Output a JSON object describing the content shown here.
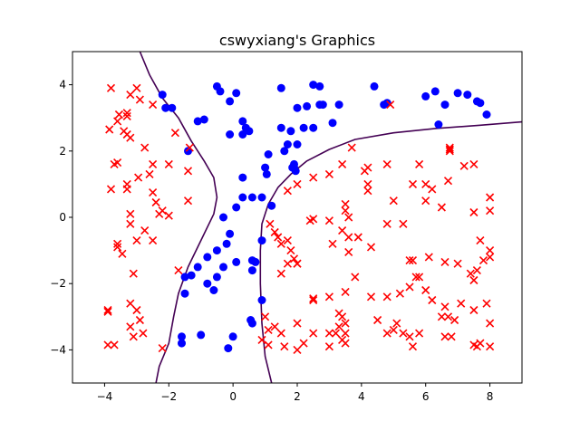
{
  "chart_data": {
    "type": "scatter",
    "title": "cswyxiang's Graphics",
    "xlabel": "",
    "ylabel": "",
    "xlim": [
      -5,
      9
    ],
    "ylim": [
      -5,
      5
    ],
    "xticks": [
      -4,
      -2,
      0,
      2,
      4,
      6,
      8
    ],
    "yticks": [
      -4,
      -2,
      0,
      2,
      4
    ],
    "xtick_labels": [
      "−4",
      "−2",
      "0",
      "2",
      "4",
      "6",
      "8"
    ],
    "ytick_labels": [
      "−4",
      "−2",
      "0",
      "2",
      "4"
    ],
    "grid": false,
    "legend": "none",
    "colors": {
      "positive": "#0000ff",
      "negative": "#ff0000",
      "boundary": "#440154"
    },
    "series": [
      {
        "marker": "circle",
        "color": "#0000ff",
        "points": [
          [
            -2.2,
            3.7
          ],
          [
            -2.1,
            3.3
          ],
          [
            -1.9,
            3.3
          ],
          [
            -1.1,
            2.9
          ],
          [
            -0.9,
            2.95
          ],
          [
            -0.5,
            3.95
          ],
          [
            -0.4,
            3.8
          ],
          [
            -0.1,
            3.5
          ],
          [
            0.1,
            3.75
          ],
          [
            -0.1,
            2.5
          ],
          [
            0.3,
            2.9
          ],
          [
            0.4,
            2.7
          ],
          [
            0.5,
            2.6
          ],
          [
            0.3,
            2.5
          ],
          [
            1.1,
            1.9
          ],
          [
            1.0,
            1.5
          ],
          [
            1.05,
            1.3
          ],
          [
            0.3,
            1.2
          ],
          [
            0.6,
            0.6
          ],
          [
            0.3,
            0.6
          ],
          [
            0.1,
            0.3
          ],
          [
            0.9,
            0.6
          ],
          [
            1.2,
            0.35
          ],
          [
            -1.4,
            2.0
          ],
          [
            1.5,
            3.9
          ],
          [
            1.5,
            2.7
          ],
          [
            1.7,
            2.2
          ],
          [
            1.6,
            2.0
          ],
          [
            1.8,
            2.6
          ],
          [
            2.0,
            3.3
          ],
          [
            2.2,
            2.7
          ],
          [
            2.3,
            3.35
          ],
          [
            2.5,
            4.0
          ],
          [
            2.7,
            3.95
          ],
          [
            2.5,
            2.7
          ],
          [
            2.7,
            3.4
          ],
          [
            2.8,
            3.4
          ],
          [
            3.1,
            2.85
          ],
          [
            3.3,
            3.4
          ],
          [
            2.0,
            2.2
          ],
          [
            1.9,
            1.5
          ],
          [
            1.95,
            1.4
          ],
          [
            1.85,
            1.5
          ],
          [
            1.9,
            1.6
          ],
          [
            4.4,
            3.95
          ],
          [
            4.7,
            3.4
          ],
          [
            4.8,
            3.45
          ],
          [
            6.0,
            3.65
          ],
          [
            6.3,
            3.8
          ],
          [
            6.6,
            3.4
          ],
          [
            7.0,
            3.75
          ],
          [
            7.3,
            3.7
          ],
          [
            7.6,
            3.5
          ],
          [
            7.7,
            3.45
          ],
          [
            7.9,
            3.1
          ],
          [
            6.4,
            2.8
          ],
          [
            -0.3,
            0.0
          ],
          [
            -0.1,
            -0.5
          ],
          [
            -0.2,
            -0.8
          ],
          [
            -0.5,
            -1.0
          ],
          [
            -0.8,
            -1.2
          ],
          [
            -1.1,
            -1.5
          ],
          [
            -1.3,
            -1.75
          ],
          [
            -1.5,
            -1.8
          ],
          [
            -1.5,
            -2.3
          ],
          [
            -0.3,
            -1.5
          ],
          [
            -0.5,
            -1.8
          ],
          [
            -0.6,
            -2.2
          ],
          [
            -0.8,
            -2.0
          ],
          [
            0.1,
            -1.35
          ],
          [
            0.6,
            -1.3
          ],
          [
            0.6,
            -1.6
          ],
          [
            0.9,
            -0.7
          ],
          [
            0.9,
            -2.5
          ],
          [
            -1.6,
            -3.6
          ],
          [
            -1.6,
            -3.8
          ],
          [
            -1.0,
            -3.55
          ],
          [
            0.0,
            -3.6
          ],
          [
            -0.15,
            -3.95
          ],
          [
            0.55,
            -3.1
          ],
          [
            0.6,
            -3.2
          ],
          [
            0.7,
            -1.35
          ]
        ]
      },
      {
        "marker": "x",
        "color": "#ff0000",
        "points": [
          [
            -3.8,
            3.9
          ],
          [
            -3.6,
            2.9
          ],
          [
            -3.3,
            3.05
          ],
          [
            -3.3,
            3.15
          ],
          [
            -3.2,
            3.7
          ],
          [
            -3.0,
            3.9
          ],
          [
            -2.9,
            3.55
          ],
          [
            -3.85,
            2.65
          ],
          [
            -3.55,
            3.1
          ],
          [
            -3.4,
            2.6
          ],
          [
            -3.3,
            2.5
          ],
          [
            -2.75,
            2.1
          ],
          [
            -2.5,
            3.4
          ],
          [
            -1.8,
            2.55
          ],
          [
            -1.35,
            2.1
          ],
          [
            -1.4,
            1.4
          ],
          [
            -3.2,
            2.4
          ],
          [
            -3.7,
            1.6
          ],
          [
            -3.6,
            1.65
          ],
          [
            -3.8,
            0.85
          ],
          [
            -3.3,
            1.0
          ],
          [
            -3.3,
            0.85
          ],
          [
            -2.95,
            1.2
          ],
          [
            -2.5,
            1.6
          ],
          [
            -2.6,
            1.3
          ],
          [
            -2.0,
            1.6
          ],
          [
            -2.5,
            0.75
          ],
          [
            -2.4,
            0.45
          ],
          [
            -2.3,
            0.1
          ],
          [
            -2.2,
            0.2
          ],
          [
            -2.0,
            0.05
          ],
          [
            -3.2,
            0.1
          ],
          [
            -3.2,
            -0.2
          ],
          [
            -1.4,
            0.5
          ],
          [
            -3.6,
            -0.8
          ],
          [
            -3.6,
            -0.9
          ],
          [
            -3.45,
            -1.1
          ],
          [
            -3.0,
            -0.7
          ],
          [
            -2.5,
            -0.7
          ],
          [
            -2.75,
            -0.4
          ],
          [
            -3.1,
            -1.7
          ],
          [
            -1.7,
            -1.6
          ],
          [
            -3.9,
            -2.8
          ],
          [
            -3.9,
            -2.85
          ],
          [
            -3.2,
            -2.6
          ],
          [
            -3.0,
            -2.8
          ],
          [
            -2.9,
            -3.1
          ],
          [
            -3.2,
            -3.3
          ],
          [
            -3.1,
            -3.6
          ],
          [
            -2.8,
            -3.5
          ],
          [
            -3.9,
            -3.85
          ],
          [
            -3.7,
            -3.85
          ],
          [
            -2.2,
            -3.95
          ],
          [
            4.9,
            3.4
          ],
          [
            6.75,
            2.05
          ],
          [
            6.75,
            2.1
          ],
          [
            6.75,
            2.0
          ],
          [
            3.7,
            2.1
          ],
          [
            3.4,
            1.6
          ],
          [
            4.1,
            1.4
          ],
          [
            4.2,
            1.5
          ],
          [
            4.2,
            1.0
          ],
          [
            4.8,
            1.6
          ],
          [
            5.6,
            1.0
          ],
          [
            5.8,
            1.6
          ],
          [
            6.0,
            1.0
          ],
          [
            6.2,
            0.85
          ],
          [
            6.7,
            1.1
          ],
          [
            7.2,
            1.55
          ],
          [
            7.5,
            1.6
          ],
          [
            1.7,
            0.8
          ],
          [
            2.0,
            1.0
          ],
          [
            2.5,
            1.2
          ],
          [
            3.0,
            1.3
          ],
          [
            3.5,
            0.4
          ],
          [
            3.5,
            0.2
          ],
          [
            3.6,
            0.0
          ],
          [
            4.2,
            0.8
          ],
          [
            5.0,
            0.5
          ],
          [
            6.0,
            0.5
          ],
          [
            6.5,
            0.3
          ],
          [
            7.5,
            0.15
          ],
          [
            8.0,
            0.6
          ],
          [
            8.0,
            0.2
          ],
          [
            1.15,
            -0.2
          ],
          [
            1.3,
            -0.45
          ],
          [
            1.4,
            -0.6
          ],
          [
            1.5,
            -0.8
          ],
          [
            1.7,
            -0.7
          ],
          [
            1.8,
            -1.0
          ],
          [
            1.7,
            -1.4
          ],
          [
            1.5,
            -1.7
          ],
          [
            1.9,
            -1.25
          ],
          [
            2.0,
            -1.4
          ],
          [
            2.4,
            -0.1
          ],
          [
            2.5,
            -0.05
          ],
          [
            3.0,
            -0.1
          ],
          [
            3.1,
            -0.8
          ],
          [
            3.4,
            -0.4
          ],
          [
            3.6,
            -0.6
          ],
          [
            3.6,
            -1.05
          ],
          [
            3.9,
            -0.6
          ],
          [
            4.3,
            -0.9
          ],
          [
            4.8,
            -0.2
          ],
          [
            5.3,
            -0.2
          ],
          [
            5.6,
            -1.3
          ],
          [
            5.5,
            -1.3
          ],
          [
            5.8,
            -1.8
          ],
          [
            6.1,
            -1.2
          ],
          [
            6.6,
            -1.35
          ],
          [
            7.0,
            -1.4
          ],
          [
            7.4,
            -1.7
          ],
          [
            7.6,
            -1.6
          ],
          [
            7.8,
            -1.3
          ],
          [
            8.0,
            -1.0
          ],
          [
            8.0,
            -1.2
          ],
          [
            7.7,
            -0.7
          ],
          [
            2.0,
            -1.4
          ],
          [
            2.5,
            -2.5
          ],
          [
            2.5,
            -2.45
          ],
          [
            3.0,
            -2.4
          ],
          [
            3.5,
            -2.25
          ],
          [
            3.8,
            -1.8
          ],
          [
            4.3,
            -2.4
          ],
          [
            4.8,
            -2.4
          ],
          [
            5.2,
            -2.3
          ],
          [
            5.5,
            -2.1
          ],
          [
            5.7,
            -1.8
          ],
          [
            6.0,
            -2.2
          ],
          [
            6.2,
            -2.5
          ],
          [
            6.6,
            -2.7
          ],
          [
            7.1,
            -2.6
          ],
          [
            7.5,
            -1.9
          ],
          [
            7.9,
            -2.6
          ],
          [
            1.0,
            -3.0
          ],
          [
            1.1,
            -3.4
          ],
          [
            1.3,
            -3.3
          ],
          [
            1.5,
            -3.5
          ],
          [
            1.6,
            -3.9
          ],
          [
            2.0,
            -3.2
          ],
          [
            2.2,
            -3.8
          ],
          [
            2.0,
            -4.0
          ],
          [
            2.5,
            -3.5
          ],
          [
            3.0,
            -3.5
          ],
          [
            3.2,
            -3.5
          ],
          [
            3.4,
            -3.7
          ],
          [
            3.5,
            -3.8
          ],
          [
            3.3,
            -2.9
          ],
          [
            3.4,
            -3.0
          ],
          [
            3.5,
            -3.2
          ],
          [
            3.3,
            -3.3
          ],
          [
            3.5,
            -3.5
          ],
          [
            3.0,
            -3.9
          ],
          [
            4.5,
            -3.1
          ],
          [
            5.0,
            -3.4
          ],
          [
            5.1,
            -3.2
          ],
          [
            5.3,
            -3.5
          ],
          [
            5.5,
            -3.6
          ],
          [
            5.8,
            -3.5
          ],
          [
            6.5,
            -3.0
          ],
          [
            6.9,
            -3.1
          ],
          [
            6.8,
            -3.6
          ],
          [
            7.5,
            -3.85
          ],
          [
            7.6,
            -3.9
          ],
          [
            7.7,
            -3.8
          ],
          [
            8.0,
            -3.9
          ],
          [
            8.0,
            -3.2
          ],
          [
            6.6,
            -3.6
          ],
          [
            0.9,
            -3.7
          ],
          [
            1.1,
            -3.85
          ],
          [
            4.8,
            -3.5
          ],
          [
            5.6,
            -3.9
          ],
          [
            6.7,
            -3.0
          ],
          [
            7.5,
            -2.8
          ]
        ]
      }
    ],
    "boundary_curves": [
      [
        [
          -2.9,
          5.0
        ],
        [
          -2.6,
          4.3
        ],
        [
          -2.2,
          3.6
        ],
        [
          -1.7,
          3.0
        ],
        [
          -1.3,
          2.3
        ],
        [
          -0.9,
          1.7
        ],
        [
          -0.6,
          1.2
        ],
        [
          -0.5,
          0.6
        ],
        [
          -0.6,
          0.1
        ],
        [
          -1.0,
          -0.7
        ],
        [
          -1.4,
          -1.5
        ],
        [
          -1.7,
          -2.3
        ],
        [
          -1.85,
          -3.0
        ],
        [
          -2.0,
          -3.8
        ],
        [
          -2.3,
          -4.5
        ],
        [
          -2.4,
          -5.0
        ]
      ],
      [
        [
          1.2,
          -5.0
        ],
        [
          1.0,
          -4.2
        ],
        [
          0.9,
          -3.2
        ],
        [
          0.85,
          -2.0
        ],
        [
          0.85,
          -1.0
        ],
        [
          0.9,
          -0.2
        ],
        [
          1.1,
          0.4
        ],
        [
          1.4,
          0.9
        ],
        [
          1.8,
          1.3
        ],
        [
          2.3,
          1.7
        ],
        [
          3.0,
          2.05
        ],
        [
          3.8,
          2.35
        ],
        [
          5.0,
          2.55
        ],
        [
          6.3,
          2.68
        ],
        [
          7.7,
          2.78
        ],
        [
          9.0,
          2.88
        ]
      ]
    ]
  }
}
